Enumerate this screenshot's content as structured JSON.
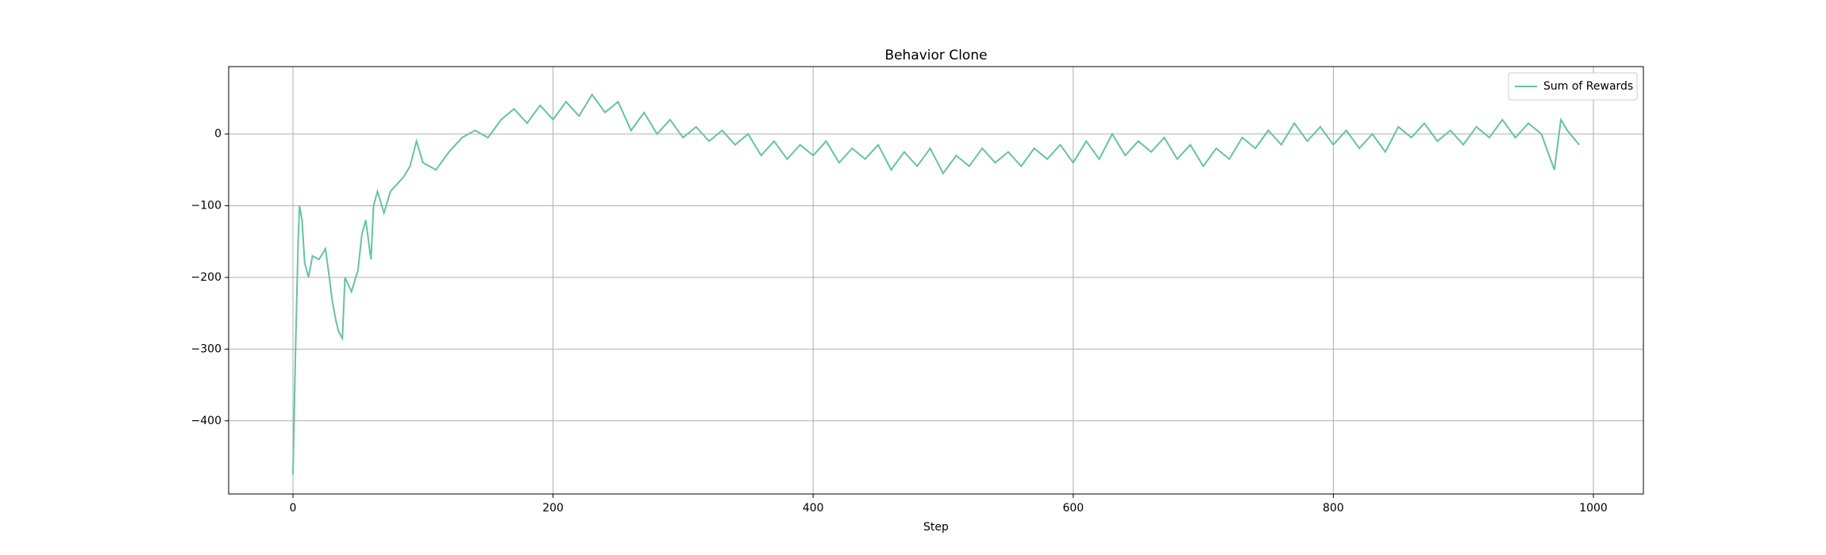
{
  "chart_data": {
    "type": "line",
    "title": "Behavior Clone",
    "x_label": "Step",
    "legend": "upper right",
    "grid": true,
    "xlim": [
      -49.45,
      1038.45
    ],
    "ylim": [
      -502,
      94
    ],
    "xticks": [
      0,
      200,
      400,
      600,
      800,
      1000
    ],
    "yticks": [
      {
        "value": -400,
        "label": "−400"
      },
      {
        "value": -300,
        "label": "−300"
      },
      {
        "value": -200,
        "label": "−200"
      },
      {
        "value": -100,
        "label": "−100"
      },
      0
    ],
    "x": [
      0,
      2,
      4,
      5,
      7,
      9,
      12,
      15,
      20,
      25,
      28,
      30,
      33,
      35,
      38,
      40,
      45,
      50,
      53,
      56,
      60,
      62,
      65,
      70,
      75,
      80,
      85,
      90,
      95,
      100,
      110,
      120,
      130,
      140,
      150,
      160,
      170,
      180,
      190,
      200,
      210,
      220,
      230,
      240,
      250,
      260,
      270,
      280,
      290,
      300,
      310,
      320,
      330,
      340,
      350,
      360,
      370,
      380,
      390,
      400,
      410,
      420,
      430,
      440,
      450,
      460,
      470,
      480,
      490,
      500,
      510,
      520,
      530,
      540,
      550,
      560,
      570,
      580,
      590,
      600,
      610,
      620,
      630,
      640,
      650,
      660,
      670,
      680,
      690,
      700,
      710,
      720,
      730,
      740,
      750,
      760,
      770,
      780,
      790,
      800,
      810,
      820,
      830,
      840,
      850,
      860,
      870,
      880,
      890,
      900,
      910,
      920,
      930,
      940,
      950,
      960,
      970,
      975,
      980,
      989
    ],
    "series": [
      {
        "name": "Sum of Rewards",
        "color": "#66c2a5",
        "values": [
          -475,
          -300,
          -150,
          -100,
          -120,
          -180,
          -200,
          -170,
          -175,
          -160,
          -200,
          -230,
          -260,
          -275,
          -285,
          -200,
          -220,
          -190,
          -140,
          -120,
          -175,
          -100,
          -80,
          -110,
          -80,
          -70,
          -60,
          -45,
          -10,
          -40,
          -50,
          -25,
          -5,
          5,
          -5,
          20,
          35,
          15,
          40,
          20,
          45,
          25,
          55,
          30,
          45,
          5,
          30,
          0,
          20,
          -5,
          10,
          -10,
          5,
          -15,
          0,
          -30,
          -10,
          -35,
          -15,
          -30,
          -10,
          -40,
          -20,
          -35,
          -15,
          -50,
          -25,
          -45,
          -20,
          -55,
          -30,
          -45,
          -20,
          -40,
          -25,
          -45,
          -20,
          -35,
          -15,
          -40,
          -10,
          -35,
          0,
          -30,
          -10,
          -25,
          -5,
          -35,
          -15,
          -45,
          -20,
          -35,
          -5,
          -20,
          5,
          -15,
          15,
          -10,
          10,
          -15,
          5,
          -20,
          0,
          -25,
          10,
          -5,
          15,
          -10,
          5,
          -15,
          10,
          -5,
          20,
          -5,
          15,
          0,
          -50,
          20,
          5,
          -15
        ]
      }
    ]
  }
}
